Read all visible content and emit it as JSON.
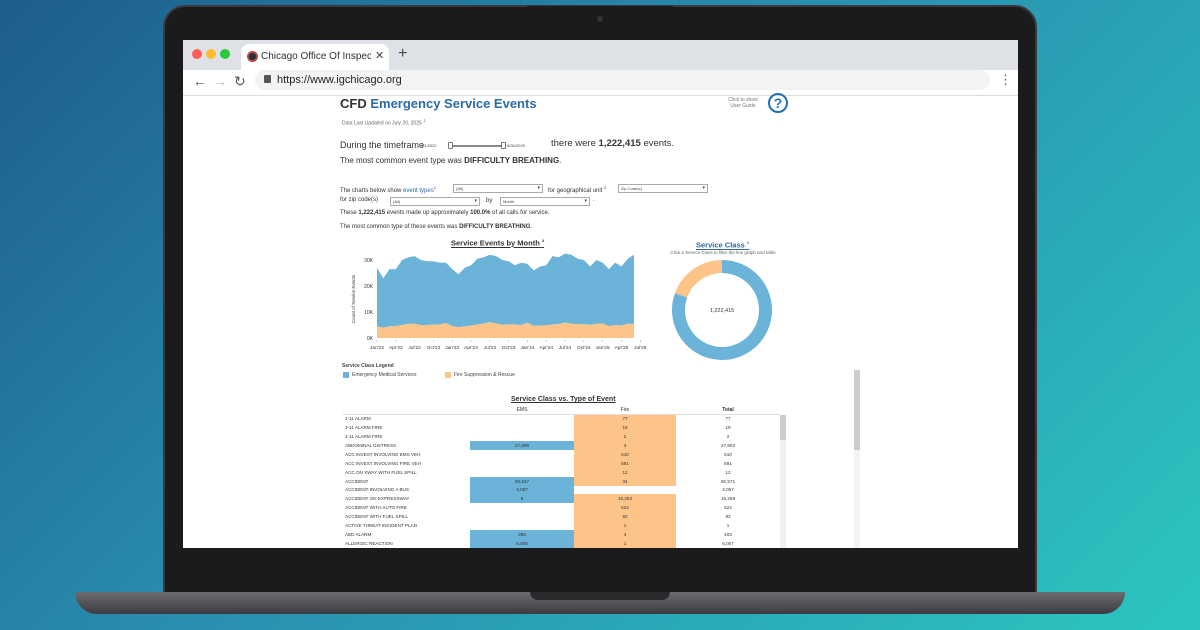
{
  "browser": {
    "tab_title": "Chicago Office Of Inspector Gene",
    "url": "https://www.igchicago.org",
    "colors": {
      "close": "#ff5f57",
      "minimize": "#febc2e",
      "maximize": "#28c840"
    },
    "icons": [
      "back-arrow-icon",
      "forward-arrow-icon",
      "reload-icon",
      "lock-icon",
      "kebab-menu-icon",
      "new-tab-plus-icon",
      "close-icon"
    ]
  },
  "header": {
    "title_prefix": "CFD",
    "title_main": "Emergency Service Events",
    "updated": "Data Last Updated on July 20, 2025",
    "updated_sup": "1",
    "guide_label": "Click to show User Guide",
    "help_icon": "?"
  },
  "summary": {
    "timeframe_label": "During the timeframe",
    "start_date": "1/1/2022",
    "end_date": "6/30/2025",
    "events_prefix": "there were",
    "events_count": "1,222,415",
    "events_suffix": "events.",
    "common_prefix": "The most common event type was",
    "common_type": "DIFFICULTY BREATHING",
    "period": "."
  },
  "filters": {
    "intro": "The charts below show",
    "event_types_link": "event types",
    "sup1": "1",
    "event_types_value": "(All)",
    "geo_label": "for geographical unit",
    "sup2": "2",
    "geo_value": "Zip Code(s)",
    "zip_label": "for zip code(s)",
    "zip_value": "(All)",
    "by_label": "by",
    "by_value": "Month",
    "end": ".",
    "share_prefix": "These",
    "share_count": "1,222,415",
    "share_mid": "events made up approximately",
    "share_pct": "100.0%",
    "share_suffix": "of all calls for service.",
    "common_prefix": "The most common type of these events was",
    "common_type": "DIFFICULTY BREATHING",
    "period": "."
  },
  "chart_data": [
    {
      "type": "area",
      "stacked": true,
      "title": "Service Events by Month",
      "title_sup": "3",
      "ylabel": "Count of Service Events",
      "ylim": [
        0,
        32000
      ],
      "yticks": [
        "0K",
        "10K",
        "20K",
        "30K"
      ],
      "xticks": [
        "Jan'22",
        "Apr'22",
        "Jul'22",
        "Oct'22",
        "Jan'23",
        "Apr'23",
        "Jul'23",
        "Oct'23",
        "Jan'24",
        "Apr'24",
        "Jul'24",
        "Oct'24",
        "Jan'25",
        "Apr'25",
        "Jul'25"
      ],
      "x_range": [
        "Jan 2022",
        "Jun 2025"
      ],
      "series": [
        {
          "name": "Fire Suppression & Rescue",
          "color": "#fdc48a",
          "values": [
            4500,
            4000,
            4500,
            4500,
            5000,
            5500,
            5500,
            5000,
            5000,
            5200,
            5200,
            5800,
            4600,
            4200,
            4500,
            4800,
            5200,
            5600,
            6100,
            5600,
            5100,
            5300,
            5200,
            5000,
            5900,
            4700,
            4800,
            4900,
            5200,
            5400,
            6000,
            5500,
            5300,
            5400,
            5100,
            5500,
            5600,
            4600,
            5000,
            4800,
            5500,
            5500
          ]
        },
        {
          "name": "Emergency Medical Services",
          "color": "#6bb3d9",
          "values": [
            22500,
            19000,
            22000,
            22000,
            25000,
            25500,
            26000,
            25000,
            24500,
            24300,
            23800,
            23200,
            21900,
            20300,
            22500,
            23200,
            25300,
            25400,
            25900,
            25900,
            24900,
            24200,
            22800,
            24000,
            22600,
            21300,
            22700,
            23100,
            26300,
            25600,
            26500,
            26500,
            25200,
            24600,
            22400,
            24500,
            23400,
            21900,
            24000,
            22700,
            25000,
            26500
          ]
        }
      ],
      "legend_title": "Service Class Legend",
      "legend": [
        "Emergency Medical Services",
        "Fire Suppression & Rescue"
      ]
    },
    {
      "type": "pie",
      "donut": true,
      "title": "Service Class",
      "title_sup": "1",
      "subtitle": "Click a Service Class to filter the line graph and table",
      "center_label": "1,222,415",
      "slices": [
        {
          "name": "Emergency Medical Services",
          "share": 0.805,
          "color": "#6bb3d9"
        },
        {
          "name": "Fire Suppression & Rescue",
          "share": 0.195,
          "color": "#fdc48a"
        }
      ]
    }
  ],
  "table": {
    "title": "Service Class vs. Type of Event",
    "columns": [
      "",
      "EMS",
      "Fire",
      "Total"
    ],
    "rows": [
      [
        "2-11 ALARM",
        "",
        "77",
        "77"
      ],
      [
        "3-11 ALARM FIRE",
        "",
        "19",
        "19"
      ],
      [
        "4-11 ALARM FIRE",
        "",
        "2",
        "2"
      ],
      [
        "ABDOMINAL DISTRESS",
        "27,599",
        "4",
        "27,603"
      ],
      [
        "ACC INVEST INVOLVING EMS VEH",
        "",
        "510",
        "510"
      ],
      [
        "ACC INVEST INVOLVING FIRE VEH",
        "",
        "891",
        "891"
      ],
      [
        "ACC ON XWAY WITH FUEL SPILL",
        "",
        "12",
        "12"
      ],
      [
        "ACCIDENT",
        "60,537",
        "34",
        "60,571"
      ],
      [
        "ACCIDENT INVOLVING A BUS",
        "3,057",
        "",
        "3,057"
      ],
      [
        "ACCIDENT ON EXPRESSWAY",
        "6",
        "15,253",
        "15,259"
      ],
      [
        "ACCIDENT WITH AUTO FIRE",
        "",
        "524",
        "524"
      ],
      [
        "ACCIDENT WITH FUEL SPILL",
        "",
        "92",
        "92"
      ],
      [
        "ACTIVE THREAT INCIDENT PLAN",
        "",
        "1",
        "1"
      ],
      [
        "AED ALARM",
        "399",
        "4",
        "403"
      ],
      [
        "ALLERGIC REACTION",
        "6,006",
        "1",
        "6,007"
      ]
    ]
  }
}
